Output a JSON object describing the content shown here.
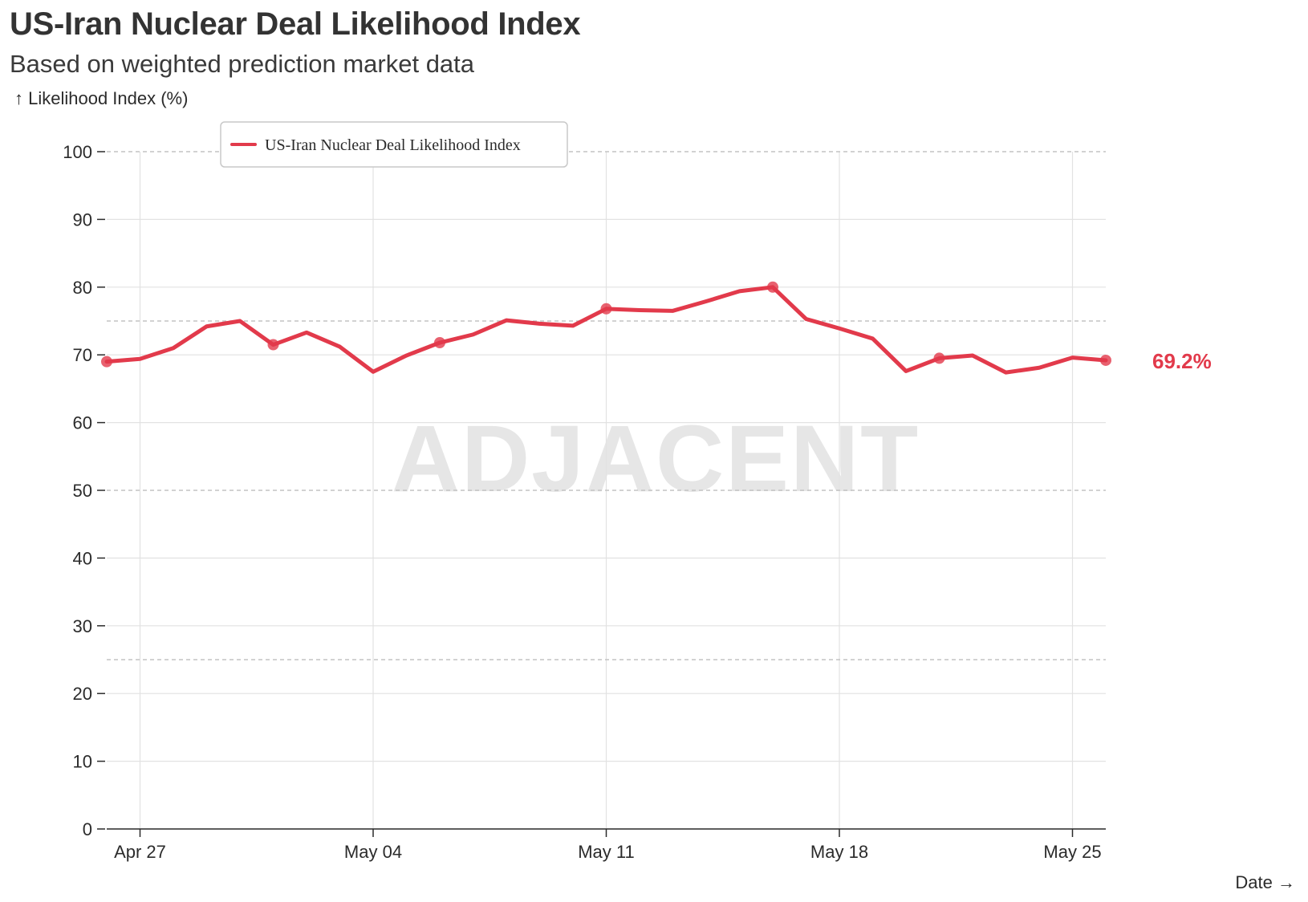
{
  "title": "US-Iran Nuclear Deal Likelihood Index",
  "subtitle": "Based on weighted prediction market data",
  "y_axis_label": "↑ Likelihood Index (%)",
  "x_axis_label": "Date →",
  "watermark": "ADJACENT",
  "colors": {
    "series": "#e23a4b",
    "grid": "#e2e2e2",
    "ref": "#c4c4c4",
    "watermark": "#e6e6e6"
  },
  "chart_data": {
    "type": "line",
    "title": "US-Iran Nuclear Deal Likelihood Index",
    "subtitle": "Based on weighted prediction market data",
    "xlabel": "Date",
    "ylabel": "Likelihood Index (%)",
    "ylim": [
      0,
      100
    ],
    "xlim": [
      "2025-04-26",
      "2025-05-26"
    ],
    "y_ticks": [
      0,
      10,
      20,
      30,
      40,
      50,
      60,
      70,
      80,
      90,
      100
    ],
    "x_ticks": [
      {
        "date": "2025-04-27",
        "label": "Apr 27"
      },
      {
        "date": "2025-05-04",
        "label": "May 04"
      },
      {
        "date": "2025-05-11",
        "label": "May 11"
      },
      {
        "date": "2025-05-18",
        "label": "May 18"
      },
      {
        "date": "2025-05-25",
        "label": "May 25"
      }
    ],
    "reference_lines": [
      25,
      50,
      75,
      100
    ],
    "grid": true,
    "legend_position": "top-left",
    "end_label": "69.2%",
    "series": [
      {
        "name": "US-Iran Nuclear Deal Likelihood Index",
        "color": "#e23a4b",
        "x": [
          "2025-04-26",
          "2025-04-27",
          "2025-04-28",
          "2025-04-29",
          "2025-04-30",
          "2025-05-01",
          "2025-05-02",
          "2025-05-03",
          "2025-05-04",
          "2025-05-05",
          "2025-05-06",
          "2025-05-07",
          "2025-05-08",
          "2025-05-09",
          "2025-05-10",
          "2025-05-11",
          "2025-05-12",
          "2025-05-13",
          "2025-05-14",
          "2025-05-15",
          "2025-05-16",
          "2025-05-17",
          "2025-05-18",
          "2025-05-19",
          "2025-05-20",
          "2025-05-21",
          "2025-05-22",
          "2025-05-23",
          "2025-05-24",
          "2025-05-25",
          "2025-05-26"
        ],
        "values": [
          69.0,
          69.4,
          71.0,
          74.2,
          75.0,
          71.5,
          73.3,
          71.2,
          67.5,
          69.9,
          71.8,
          73.0,
          75.1,
          74.6,
          74.3,
          76.8,
          76.6,
          76.5,
          77.9,
          79.4,
          80.0,
          75.3,
          73.9,
          72.4,
          67.6,
          69.5,
          69.9,
          67.4,
          68.1,
          69.6,
          69.2
        ],
        "markers": [
          "2025-04-26",
          "2025-05-01",
          "2025-05-06",
          "2025-05-11",
          "2025-05-16",
          "2025-05-21",
          "2025-05-26"
        ]
      }
    ]
  }
}
